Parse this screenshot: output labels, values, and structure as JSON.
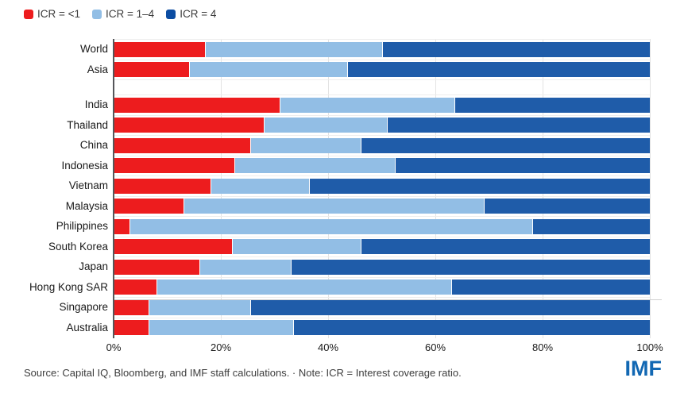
{
  "legend": {
    "items": [
      {
        "label": "ICR = <1",
        "color": "#ED1C1E"
      },
      {
        "label": "ICR = 1–4",
        "color": "#92BEE5"
      },
      {
        "label": "ICR = 4",
        "color": "#0C4DA2"
      }
    ]
  },
  "chart_data": {
    "type": "bar",
    "orientation": "horizontal",
    "stacked": true,
    "unit": "percent",
    "xlim": [
      0,
      100
    ],
    "x_ticks": [
      "0%",
      "20%",
      "40%",
      "60%",
      "80%",
      "100%"
    ],
    "grid": "vertical",
    "legend_position": "top-left",
    "series_names": [
      "ICR = <1",
      "ICR = 1–4",
      "ICR = 4"
    ],
    "colors": [
      "#ED1C1E",
      "#92BEE5",
      "#1F5CA9"
    ],
    "groups": [
      {
        "rows": [
          {
            "category": "World",
            "values": [
              17,
              33,
              50
            ]
          },
          {
            "category": "Asia",
            "values": [
              14,
              29.5,
              56.5
            ]
          }
        ]
      },
      {
        "rows": [
          {
            "category": "India",
            "values": [
              31,
              32.5,
              36.5
            ]
          },
          {
            "category": "Thailand",
            "values": [
              28,
              23,
              49
            ]
          },
          {
            "category": "China",
            "values": [
              25.5,
              20.5,
              54
            ]
          },
          {
            "category": "Indonesia",
            "values": [
              22.5,
              30,
              47.5
            ]
          },
          {
            "category": "Vietnam",
            "values": [
              18,
              18.5,
              63.5
            ]
          },
          {
            "category": "Malaysia",
            "values": [
              13,
              56,
              31
            ]
          },
          {
            "category": "Philippines",
            "values": [
              3,
              75,
              22
            ]
          },
          {
            "category": "South Korea",
            "values": [
              22,
              24,
              54
            ]
          },
          {
            "category": "Japan",
            "values": [
              16,
              17,
              67
            ]
          },
          {
            "category": "Hong Kong SAR",
            "values": [
              8,
              55,
              37
            ]
          },
          {
            "category": "Singapore",
            "values": [
              6.5,
              19,
              74.5
            ]
          },
          {
            "category": "Australia",
            "values": [
              6.5,
              27,
              66.5
            ]
          }
        ]
      }
    ]
  },
  "footer": {
    "source": "Source: Capital IQ, Bloomberg, and IMF staff calculations. · Note: ICR = Interest coverage ratio.",
    "logo_text": "IMF",
    "logo_color": "#1268B3"
  }
}
